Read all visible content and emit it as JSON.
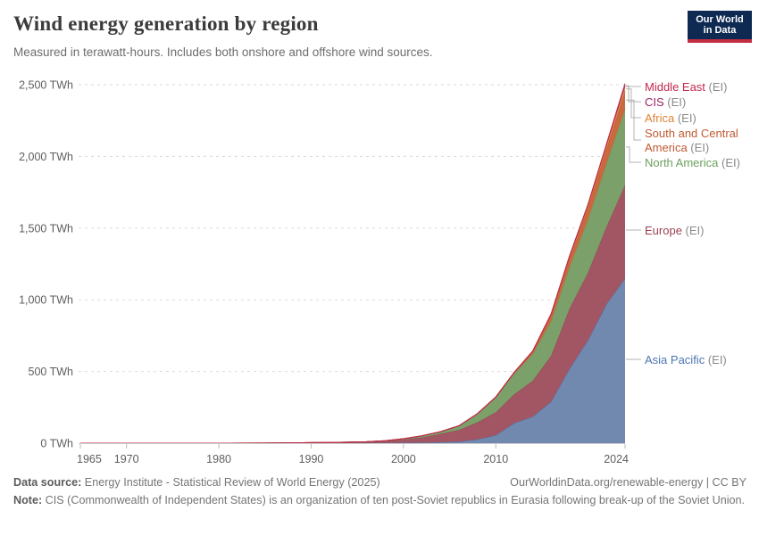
{
  "header": {
    "title": "Wind energy generation by region",
    "subtitle": "Measured in terawatt-hours. Includes both onshore and offshore wind sources.",
    "logo": {
      "line1": "Our World",
      "line2": "in Data",
      "bg_color": "#0E2A52",
      "bar_color": "#C42E43"
    }
  },
  "chart_data": {
    "type": "area",
    "stacked": true,
    "unit": "TWh",
    "grid": "dashed-horizontal",
    "legend_position": "right-edge-labels",
    "xlim": [
      1965,
      2024
    ],
    "ylim": [
      0,
      2500
    ],
    "x": [
      1965,
      1970,
      1975,
      1980,
      1985,
      1988,
      1990,
      1992,
      1994,
      1996,
      1998,
      2000,
      2002,
      2004,
      2006,
      2008,
      2010,
      2012,
      2014,
      2016,
      2018,
      2020,
      2022,
      2024
    ],
    "x_ticks": [
      1965,
      1970,
      1980,
      1990,
      2000,
      2010,
      2024
    ],
    "x_tick_labels": [
      "1965",
      "1970",
      "1980",
      "1990",
      "2000",
      "2010",
      "2024"
    ],
    "y_ticks": [
      0,
      500,
      1000,
      1500,
      2000,
      2500
    ],
    "y_tick_labels": [
      "0 TWh",
      "500 TWh",
      "1,000 TWh",
      "1,500 TWh",
      "2,000 TWh",
      "2,500 TWh"
    ],
    "series": [
      {
        "id": "asia_pacific",
        "name": "Asia Pacific",
        "suffix": " (EI)",
        "color": "#4C75B0",
        "fill": "#7289AF",
        "values": [
          0,
          0,
          0,
          0,
          0.01,
          0.05,
          0.2,
          0.3,
          0.5,
          0.8,
          1.5,
          2.5,
          4,
          6,
          10,
          26,
          55,
          140,
          185,
          290,
          520,
          720,
          970,
          1150
        ]
      },
      {
        "id": "europe",
        "name": "Europe",
        "suffix": " (EI)",
        "color": "#9A4352",
        "fill": "#A25663",
        "values": [
          0,
          0,
          0,
          0,
          0.05,
          0.3,
          0.8,
          1.8,
          3.2,
          5.5,
          11,
          22,
          36,
          58,
          82,
          118,
          160,
          200,
          250,
          320,
          420,
          470,
          540,
          650
        ]
      },
      {
        "id": "north_america",
        "name": "North America",
        "suffix": " (EI)",
        "color": "#6CA05D",
        "fill": "#7BA06A",
        "values": [
          0,
          0,
          0,
          0.1,
          0.6,
          2,
          2.8,
          3,
          3.3,
          3.4,
          3.6,
          5.7,
          10.5,
          15,
          27,
          58,
          102,
          145,
          185,
          240,
          290,
          370,
          440,
          530
        ]
      },
      {
        "id": "south_central_america",
        "name": "South and Central America",
        "suffix": " (EI)",
        "color": "#C05A32",
        "fill": "#C8693F",
        "values": [
          0,
          0,
          0,
          0,
          0,
          0,
          0,
          0.1,
          0.1,
          0.2,
          0.3,
          0.5,
          0.6,
          0.8,
          1.4,
          2,
          3.5,
          6,
          17,
          42,
          63,
          85,
          105,
          125
        ]
      },
      {
        "id": "africa",
        "name": "Africa",
        "suffix": " (EI)",
        "color": "#DD8233",
        "fill": "#DE8E4E",
        "values": [
          0,
          0,
          0,
          0,
          0,
          0,
          0,
          0,
          0,
          0.1,
          0.1,
          0.2,
          0.3,
          0.7,
          1,
          1.6,
          2.2,
          2.8,
          5.5,
          10,
          14,
          19,
          24,
          32
        ]
      },
      {
        "id": "cis",
        "name": "CIS",
        "suffix": " (EI)",
        "color": "#9A2467",
        "fill": "#A64B7B",
        "values": [
          0,
          0,
          0,
          0,
          0,
          0,
          0,
          0,
          0,
          0,
          0,
          0,
          0,
          0,
          0,
          0,
          0.1,
          0.1,
          0.2,
          0.3,
          1,
          2,
          5,
          12
        ]
      },
      {
        "id": "middle_east",
        "name": "Middle East",
        "suffix": " (EI)",
        "color": "#C2294B",
        "fill": "#C54E5B",
        "values": [
          0,
          0,
          0,
          0,
          0,
          0,
          0,
          0,
          0,
          0,
          0,
          0,
          0,
          0,
          0,
          0.1,
          0.1,
          0.2,
          0.3,
          0.5,
          1,
          2,
          5,
          9
        ]
      }
    ]
  },
  "footer": {
    "source_label": "Data source:",
    "source_text": " Energy Institute - Statistical Review of World Energy (2025)",
    "link_text": "OurWorldinData.org/renewable-energy | CC BY",
    "note_label": "Note:",
    "note_text": " CIS (Commonwealth of Independent States) is an organization of ten post-Soviet republics in Eurasia following break-up of the Soviet Union."
  }
}
